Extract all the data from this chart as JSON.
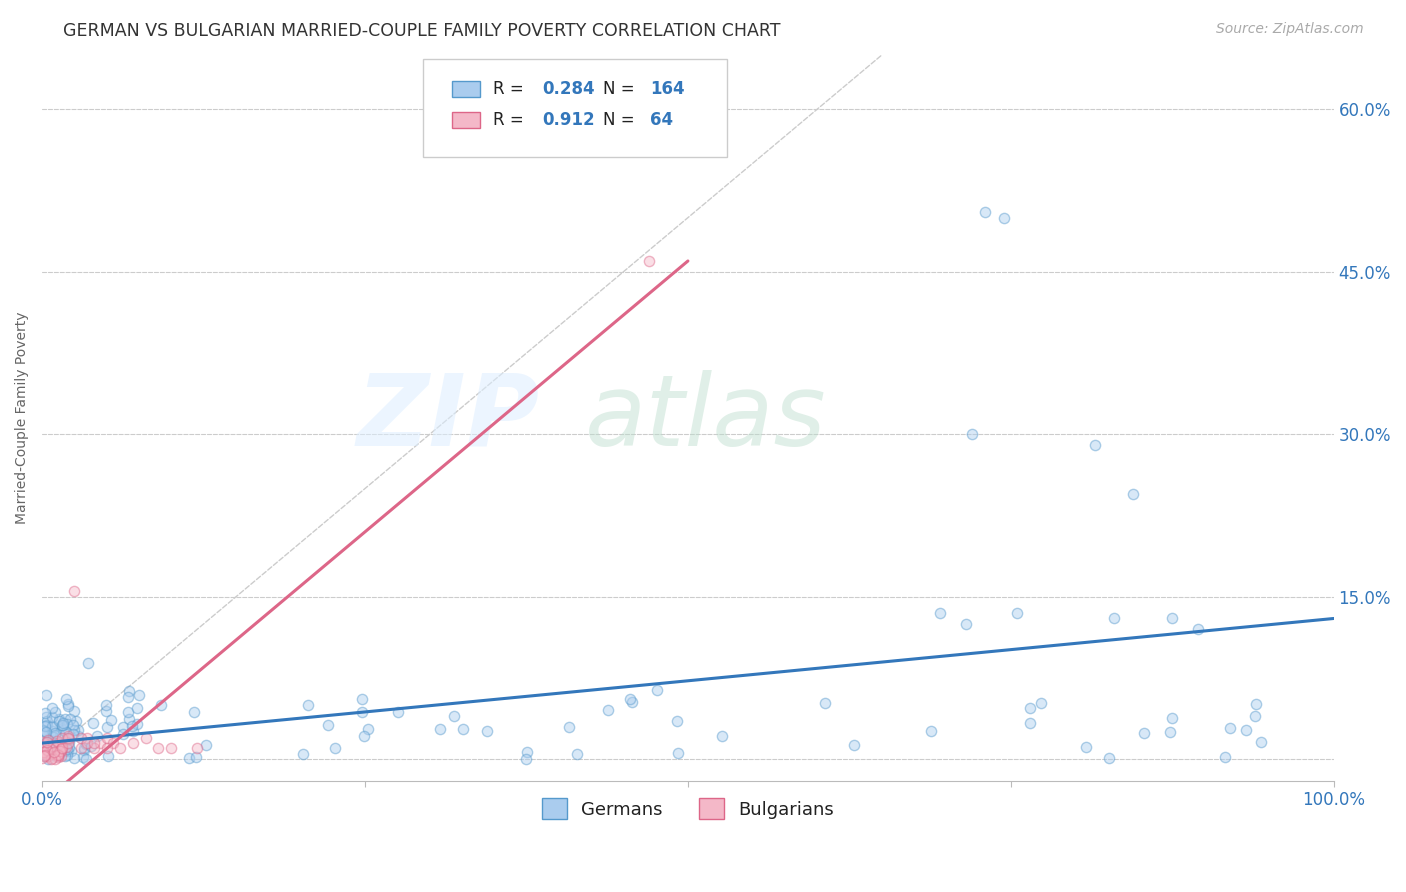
{
  "title": "GERMAN VS BULGARIAN MARRIED-COUPLE FAMILY POVERTY CORRELATION CHART",
  "source": "Source: ZipAtlas.com",
  "ylabel": "Married-Couple Family Poverty",
  "xlim": [
    0.0,
    1.0
  ],
  "ylim": [
    -0.02,
    0.65
  ],
  "xticks": [
    0.0,
    0.25,
    0.5,
    0.75,
    1.0
  ],
  "xtick_labels": [
    "0.0%",
    "",
    "",
    "",
    "100.0%"
  ],
  "yticks": [
    0.0,
    0.15,
    0.3,
    0.45,
    0.6
  ],
  "ytick_labels": [
    "",
    "15.0%",
    "30.0%",
    "45.0%",
    "60.0%"
  ],
  "background_color": "#ffffff",
  "grid_color": "#cccccc",
  "watermark_zip": "ZIP",
  "watermark_atlas": "atlas",
  "legend_R_german": "0.284",
  "legend_N_german": "164",
  "legend_R_bulgarian": "0.912",
  "legend_N_bulgarian": "64",
  "german_color": "#aaccee",
  "bulgarian_color": "#f4b8c8",
  "german_edge": "#5599cc",
  "bulgarian_edge": "#dd6688",
  "german_trend_color": "#3377bb",
  "bulgarian_trend_color": "#dd6688",
  "diagonal_color": "#cccccc",
  "title_fontsize": 12.5,
  "axis_label_fontsize": 10,
  "tick_fontsize": 12,
  "source_fontsize": 10,
  "scatter_size": 55,
  "scatter_alpha": 0.45,
  "scatter_lw": 1.0,
  "legend_value_color": "#3377bb",
  "legend_text_color": "#222222"
}
